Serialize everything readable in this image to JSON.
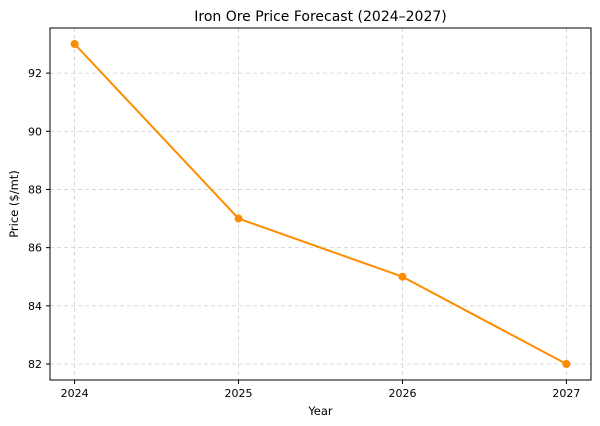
{
  "chart_data": {
    "type": "line",
    "title": "Iron Ore Price Forecast (2024–2027)",
    "xlabel": "Year",
    "ylabel": "Price ($/mt)",
    "x": [
      2024,
      2025,
      2026,
      2027
    ],
    "x_tick_labels": [
      "2024",
      "2025",
      "2026",
      "2027"
    ],
    "series": [
      {
        "name": "Iron ore price",
        "values": [
          93,
          87,
          85,
          82
        ],
        "color": "#ff8c00",
        "marker": "circle"
      }
    ],
    "xlim": [
      2023.85,
      2027.15
    ],
    "ylim": [
      81.45,
      93.55
    ],
    "y_ticks": [
      82,
      84,
      86,
      88,
      90,
      92
    ],
    "grid": true,
    "grid_style": "dashed",
    "legend": "none"
  }
}
